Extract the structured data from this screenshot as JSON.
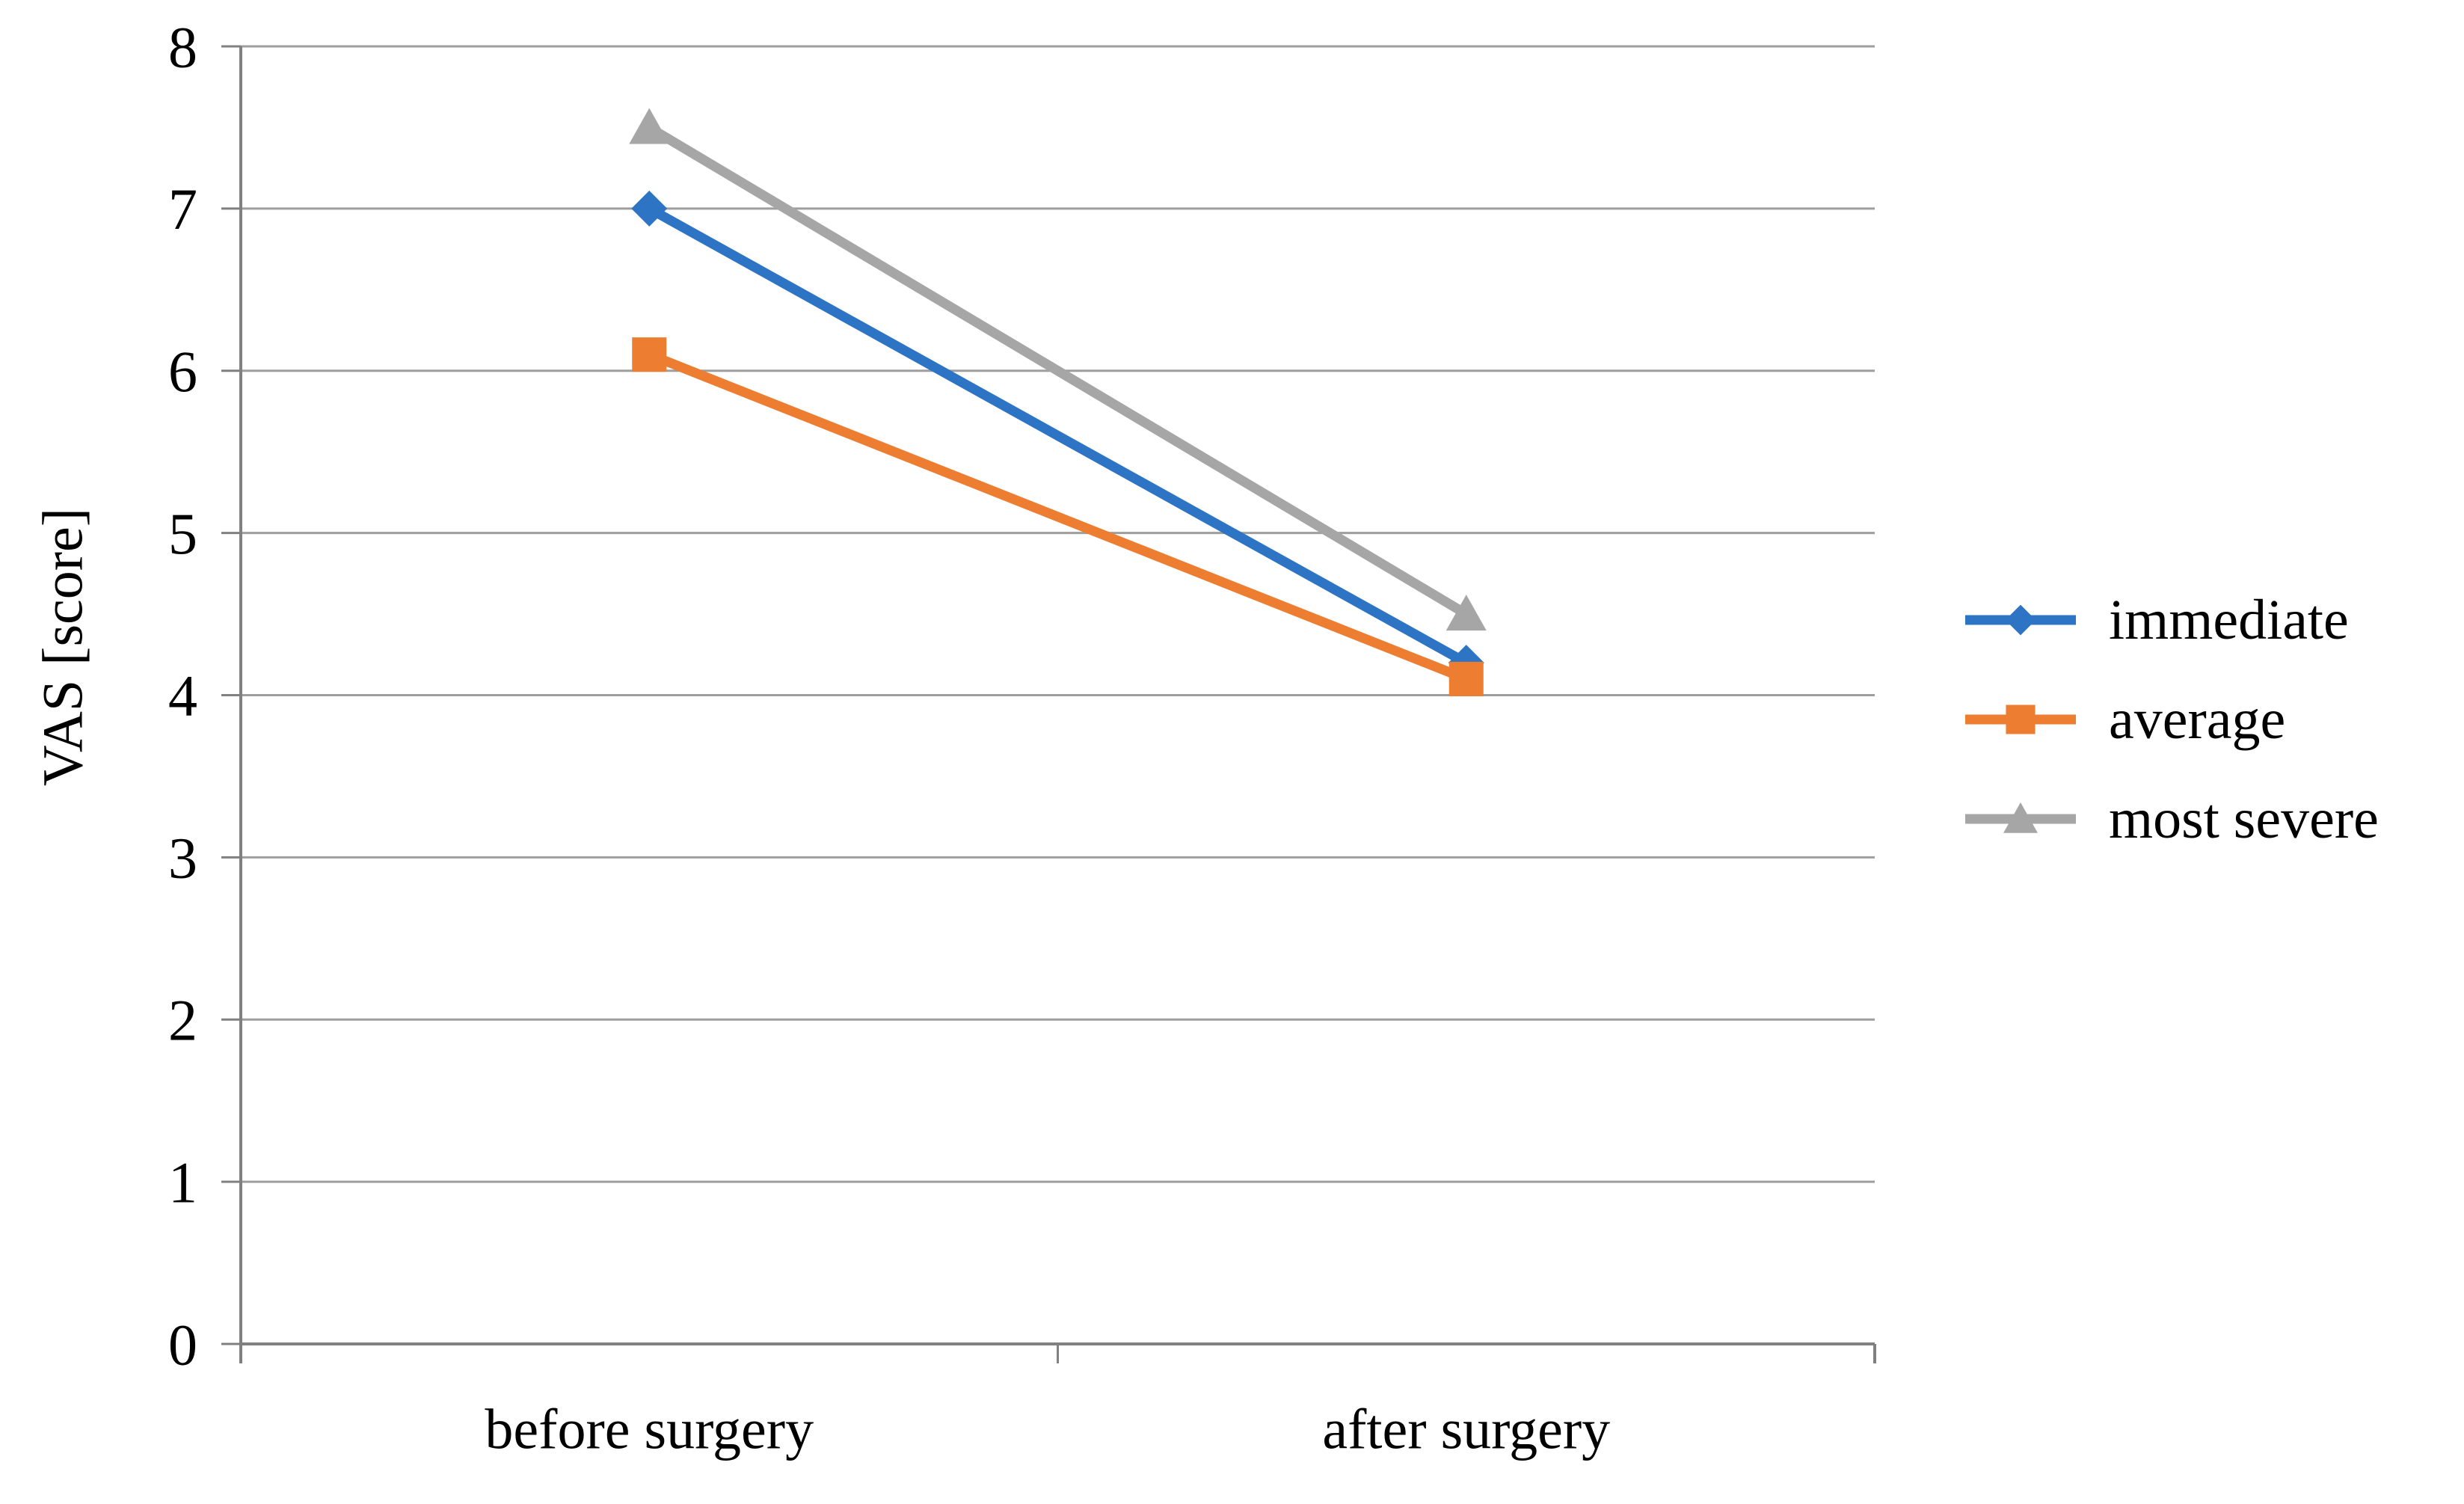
{
  "chart_data": {
    "type": "line",
    "categories": [
      "before surgery",
      "after surgery"
    ],
    "series": [
      {
        "name": "immediate",
        "color": "#2E74C4",
        "marker": "diamond",
        "values": [
          7.0,
          4.2
        ]
      },
      {
        "name": "average",
        "color": "#ED7D31",
        "marker": "square",
        "values": [
          6.1,
          4.1
        ]
      },
      {
        "name": "most severe",
        "color": "#A6A6A6",
        "marker": "triangle",
        "values": [
          7.5,
          4.5
        ]
      }
    ],
    "title": "",
    "xlabel": "",
    "ylabel": "VAS [score]",
    "ylim": [
      0,
      8
    ],
    "yticks": [
      0,
      1,
      2,
      3,
      4,
      5,
      6,
      7,
      8
    ],
    "grid": true,
    "legend_position": "right"
  },
  "colors": {
    "background": "#FFFFFF",
    "gridline": "#9E9E9E",
    "axis": "#808080",
    "text": "#000000"
  }
}
